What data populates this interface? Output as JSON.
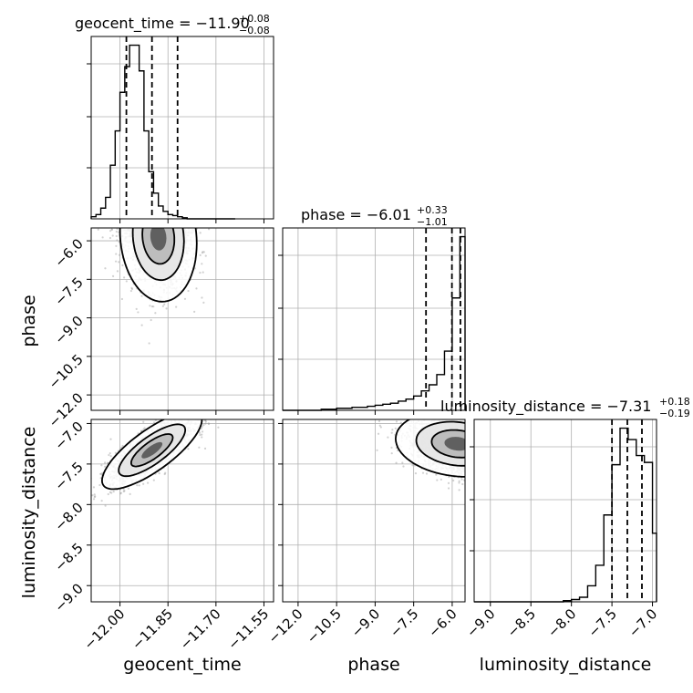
{
  "chart_data": {
    "type": "corner",
    "parameters": [
      "geocent_time",
      "phase",
      "luminosity_distance"
    ],
    "titles": [
      {
        "param": "geocent_time",
        "text": "geocent_time = −11.90",
        "plus": "+0.08",
        "minus": "−0.08"
      },
      {
        "param": "phase",
        "text": "phase = −6.01",
        "plus": "+0.33",
        "minus": "−1.01"
      },
      {
        "param": "luminosity_distance",
        "text": "luminosity_distance = −7.31",
        "plus": "+0.18",
        "minus": "−0.19"
      }
    ],
    "ranges": {
      "geocent_time": [
        -12.09,
        -11.52
      ],
      "phase": [
        -12.6,
        -5.5
      ],
      "luminosity_distance": [
        -9.2,
        -6.95
      ]
    },
    "ticks": {
      "geocent_time": {
        "values": [
          -12.0,
          -11.85,
          -11.7,
          -11.55
        ],
        "labels": [
          "−12.00",
          "−11.85",
          "−11.70",
          "−11.55"
        ]
      },
      "phase": {
        "values": [
          -12.0,
          -10.5,
          -9.0,
          -7.5,
          -6.0
        ],
        "labels": [
          "−12.0",
          "−10.5",
          "−9.0",
          "−7.5",
          "−6.0"
        ]
      },
      "luminosity_distance": {
        "values": [
          -9.0,
          -8.5,
          -8.0,
          -7.5,
          -7.0
        ],
        "labels": [
          "−9.0",
          "−8.5",
          "−8.0",
          "−7.5",
          "−7.0"
        ]
      }
    },
    "axis_labels": {
      "geocent_time": "geocent_time",
      "phase": "phase",
      "luminosity_distance": "luminosity_distance"
    },
    "histograms": {
      "geocent_time": {
        "edges": [
          -12.09,
          -12.075,
          -12.06,
          -12.045,
          -12.03,
          -12.015,
          -12.0,
          -11.985,
          -11.97,
          -11.955,
          -11.94,
          -11.925,
          -11.91,
          -11.895,
          -11.88,
          -11.865,
          -11.85,
          -11.835,
          -11.82,
          -11.805,
          -11.79,
          -11.775,
          -11.76,
          -11.745,
          -11.73,
          -11.715,
          -11.7,
          -11.685,
          -11.67,
          -11.655,
          -11.64
        ],
        "counts": [
          2,
          4,
          10,
          20,
          50,
          82,
          118,
          142,
          162,
          162,
          138,
          82,
          44,
          24,
          12,
          7,
          4,
          3,
          2,
          1,
          0,
          0,
          0,
          0,
          0,
          0,
          0,
          0,
          0,
          0
        ],
        "quantiles": [
          -11.98,
          -11.9,
          -11.82
        ]
      },
      "phase": {
        "edges": [
          -12.6,
          -12.3,
          -12.0,
          -11.7,
          -11.4,
          -11.1,
          -10.8,
          -10.5,
          -10.2,
          -9.9,
          -9.6,
          -9.3,
          -9.0,
          -8.7,
          -8.4,
          -8.1,
          -7.8,
          -7.5,
          -7.2,
          -6.9,
          -6.6,
          -6.3,
          -6.0,
          -5.7,
          -5.5
        ],
        "counts": [
          0,
          0,
          0,
          0,
          0,
          1,
          1,
          2,
          2,
          3,
          3,
          4,
          5,
          6,
          7,
          9,
          11,
          14,
          19,
          25,
          35,
          58,
          110,
          170
        ],
        "quantiles": [
          -7.02,
          -6.01,
          -5.68
        ]
      },
      "luminosity_distance": {
        "edges": [
          -9.2,
          -9.1,
          -9.0,
          -8.9,
          -8.8,
          -8.7,
          -8.6,
          -8.5,
          -8.4,
          -8.3,
          -8.2,
          -8.1,
          -8.0,
          -7.9,
          -7.8,
          -7.7,
          -7.6,
          -7.5,
          -7.4,
          -7.3,
          -7.2,
          -7.1,
          -7.0,
          -6.95
        ],
        "counts": [
          0,
          0,
          0,
          0,
          0,
          0,
          0,
          0,
          0,
          0,
          0,
          1,
          2,
          4,
          14,
          32,
          76,
          120,
          152,
          142,
          128,
          122,
          60
        ],
        "quantiles": [
          -7.5,
          -7.31,
          -7.13
        ]
      }
    },
    "pairs": [
      {
        "x": "geocent_time",
        "y": "phase",
        "center": [
          -11.88,
          -5.85
        ],
        "sigma": [
          0.05,
          1.05
        ],
        "rho": -0.1,
        "clip_y_max": -5.5
      },
      {
        "x": "geocent_time",
        "y": "luminosity_distance",
        "center": [
          -11.9,
          -7.33
        ],
        "sigma": [
          0.065,
          0.2
        ],
        "rho": 0.78
      },
      {
        "x": "phase",
        "y": "luminosity_distance",
        "center": [
          -5.8,
          -7.25
        ],
        "sigma": [
          1.0,
          0.17
        ],
        "rho": -0.15,
        "clip_x_max": -5.5
      }
    ],
    "grid": true
  }
}
